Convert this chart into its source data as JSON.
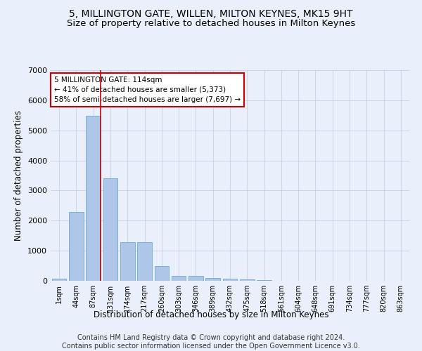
{
  "title": "5, MILLINGTON GATE, WILLEN, MILTON KEYNES, MK15 9HT",
  "subtitle": "Size of property relative to detached houses in Milton Keynes",
  "xlabel": "Distribution of detached houses by size in Milton Keynes",
  "ylabel": "Number of detached properties",
  "categories": [
    "1sqm",
    "44sqm",
    "87sqm",
    "131sqm",
    "174sqm",
    "217sqm",
    "260sqm",
    "303sqm",
    "346sqm",
    "389sqm",
    "432sqm",
    "475sqm",
    "518sqm",
    "561sqm",
    "604sqm",
    "648sqm",
    "691sqm",
    "734sqm",
    "777sqm",
    "820sqm",
    "863sqm"
  ],
  "values": [
    60,
    2280,
    5480,
    3400,
    1290,
    1290,
    490,
    170,
    170,
    90,
    60,
    50,
    20,
    8,
    5,
    3,
    2,
    2,
    1,
    1,
    1
  ],
  "bar_color": "#aec6e8",
  "bar_edge_color": "#6aaad4",
  "vline_x_index": 2.42,
  "vline_color": "#cc0000",
  "annotation_text": "5 MILLINGTON GATE: 114sqm\n← 41% of detached houses are smaller (5,373)\n58% of semi-detached houses are larger (7,697) →",
  "annotation_box_color": "#ffffff",
  "annotation_box_edge": "#cc0000",
  "ylim": [
    0,
    7000
  ],
  "yticks": [
    0,
    1000,
    2000,
    3000,
    4000,
    5000,
    6000,
    7000
  ],
  "background_color": "#eaf0fb",
  "plot_bg_color": "#eaf0fb",
  "footer": "Contains HM Land Registry data © Crown copyright and database right 2024.\nContains public sector information licensed under the Open Government Licence v3.0.",
  "title_fontsize": 10,
  "subtitle_fontsize": 9.5,
  "xlabel_fontsize": 8.5,
  "ylabel_fontsize": 8.5,
  "footer_fontsize": 7
}
